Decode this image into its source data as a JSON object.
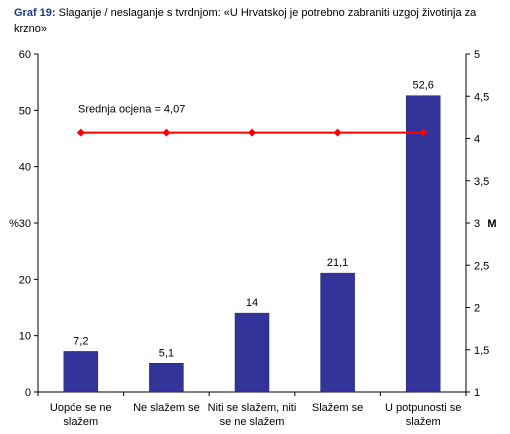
{
  "title_prefix": "Graf 19:",
  "title_text": "Slaganje / neslaganje s tvrdnjom: «U Hrvatskoj je potrebno zabraniti uzgoj životinja za krzno»",
  "colors": {
    "bars": "#333399",
    "mean_line": "#ff0000",
    "axis": "#000000"
  },
  "chart_data": {
    "type": "bar",
    "categories": [
      [
        "Uopće se ne",
        "slažem"
      ],
      [
        "Ne slažem se"
      ],
      [
        "Niti se slažem, niti",
        "se ne slažem"
      ],
      [
        "Slažem se"
      ],
      [
        "U potpunosti se",
        "slažem"
      ]
    ],
    "values": [
      7.2,
      5.1,
      14,
      21.1,
      52.6
    ],
    "value_labels": [
      "7,2",
      "5,1",
      "14",
      "21,1",
      "52,6"
    ],
    "ylabel": "%",
    "ylim": [
      0,
      60
    ],
    "y_ticks": [
      0,
      10,
      20,
      30,
      40,
      50,
      60
    ],
    "y2label": "M",
    "y2lim": [
      1,
      5
    ],
    "y2_ticks": [
      "1",
      "1,5",
      "2",
      "2,5",
      "3",
      "3,5",
      "4",
      "4,5",
      "5"
    ],
    "mean": {
      "label": "Srednja ocjena = 4,07",
      "value": 4.07
    },
    "grid": false
  }
}
